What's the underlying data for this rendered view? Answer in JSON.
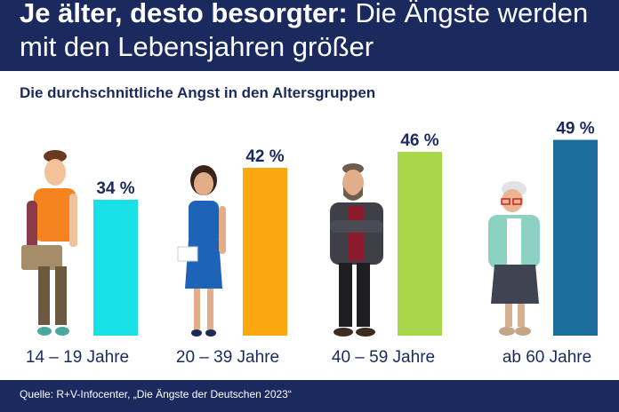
{
  "header": {
    "title_bold": "Je älter, desto besorgter:",
    "title_rest": "Die Ängste werden mit den Lebensjahren größer"
  },
  "chart_data": {
    "type": "bar",
    "title": "Die durchschnittliche Angst in den Altersgruppen",
    "categories": [
      "14 – 19 Jahre",
      "20 – 39 Jahre",
      "40 – 59 Jahre",
      "ab 60 Jahre"
    ],
    "values": [
      34,
      42,
      46,
      49
    ],
    "value_labels": [
      "34 %",
      "42 %",
      "46 %",
      "49 %"
    ],
    "colors": [
      "#19e0e6",
      "#fba70f",
      "#a7d84a",
      "#1b6e9c"
    ],
    "ylim": [
      0,
      50
    ],
    "grid": false,
    "legend": "none"
  },
  "footer": {
    "source": "Quelle: R+V-Infocenter, „Die Ängste der Deutschen 2023“"
  }
}
